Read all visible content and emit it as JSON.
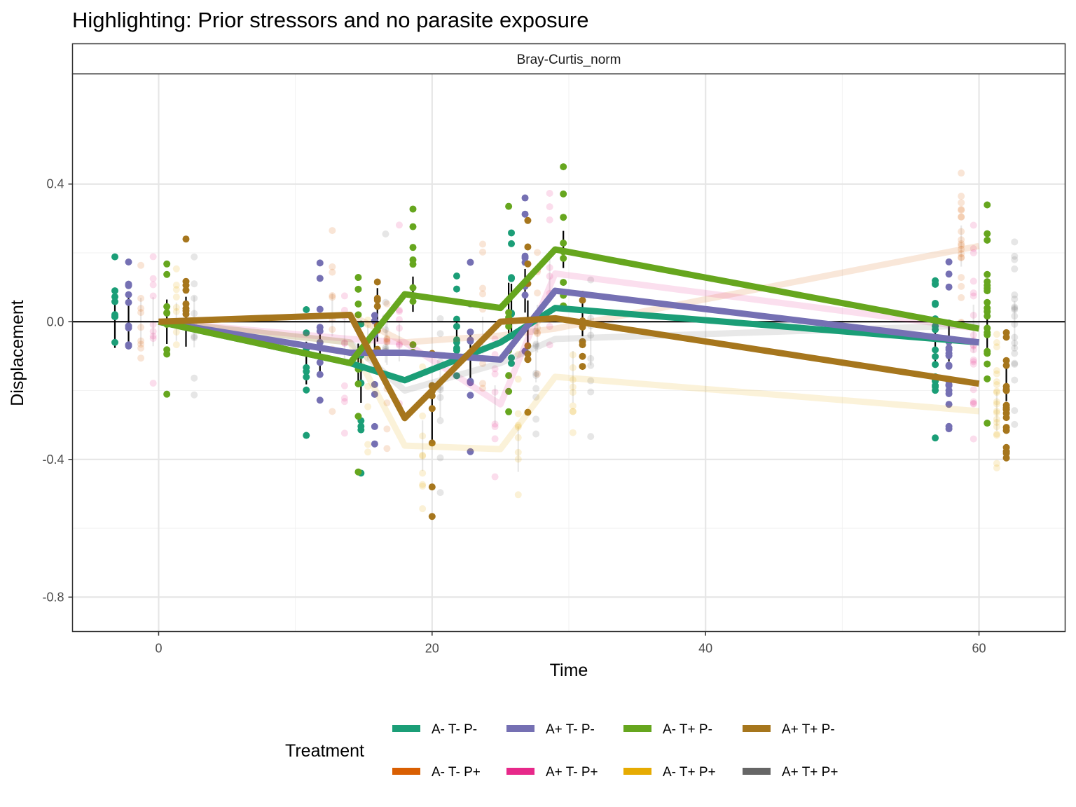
{
  "chart_data": {
    "type": "line",
    "title": "Highlighting: Prior stressors and no parasite exposure",
    "facet_label": "Bray-Curtis_norm",
    "xlabel": "Time",
    "ylabel": "Displacement",
    "xlim": [
      -6.3,
      66.3
    ],
    "ylim": [
      -0.9,
      0.72
    ],
    "x_ticks": [
      0,
      20,
      40,
      60
    ],
    "x_tick_labels": [
      "0",
      "20",
      "40",
      "60"
    ],
    "y_ticks": [
      0.4,
      0.0,
      -0.4,
      -0.8
    ],
    "y_tick_labels": [
      "0.4",
      "0.0",
      "-0.4",
      "-0.8"
    ],
    "hline_y": 0,
    "grid": true,
    "legend": {
      "title": "Treatment",
      "position": "bottom"
    },
    "series": [
      {
        "name": "A- T- P-",
        "color": "#1B9E77",
        "highlighted": true,
        "x": [
          0,
          14,
          18,
          25,
          29,
          60
        ],
        "y": [
          0.0,
          -0.12,
          -0.17,
          -0.06,
          0.04,
          -0.06
        ]
      },
      {
        "name": "A+ T- P-",
        "color": "#7570B3",
        "highlighted": true,
        "x": [
          0,
          14,
          18,
          25,
          29,
          60
        ],
        "y": [
          0.0,
          -0.09,
          -0.09,
          -0.11,
          0.09,
          -0.06
        ]
      },
      {
        "name": "A- T+ P-",
        "color": "#66A61E",
        "highlighted": true,
        "x": [
          0,
          14,
          18,
          25,
          29,
          60
        ],
        "y": [
          0.0,
          -0.12,
          0.08,
          0.04,
          0.21,
          -0.02
        ]
      },
      {
        "name": "A+ T+ P-",
        "color": "#A6761D",
        "highlighted": true,
        "x": [
          0,
          14,
          18,
          25,
          29,
          60
        ],
        "y": [
          0.0,
          0.02,
          -0.28,
          0.0,
          0.01,
          -0.18
        ]
      },
      {
        "name": "A- T- P+",
        "color": "#D95F02",
        "highlighted": false,
        "x": [
          0,
          14,
          18,
          25,
          29,
          60
        ],
        "y": [
          0.0,
          0.02,
          -0.06,
          -0.04,
          -0.02,
          0.22
        ]
      },
      {
        "name": "A+ T- P+",
        "color": "#E7298A",
        "highlighted": false,
        "x": [
          0,
          14,
          18,
          25,
          29,
          60
        ],
        "y": [
          0.0,
          -0.05,
          -0.06,
          -0.24,
          0.14,
          -0.02
        ]
      },
      {
        "name": "A- T+ P+",
        "color": "#E6AB02",
        "highlighted": false,
        "x": [
          0,
          14,
          18,
          25,
          29,
          60
        ],
        "y": [
          0.0,
          -0.06,
          -0.36,
          -0.37,
          -0.16,
          -0.26
        ]
      },
      {
        "name": "A+ T+ P+",
        "color": "#666666",
        "highlighted": false,
        "x": [
          0,
          14,
          18,
          25,
          29,
          60
        ],
        "y": [
          0.0,
          -0.06,
          -0.2,
          -0.12,
          -0.05,
          -0.01
        ]
      }
    ]
  }
}
